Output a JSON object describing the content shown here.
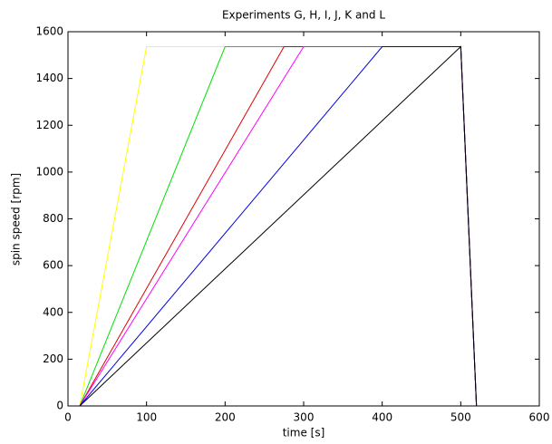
{
  "chart_data": {
    "type": "line",
    "title": "Experiments G, H, I, J, K and L",
    "xlabel": "time [s]",
    "ylabel": "spin speed [rpm]",
    "series": [
      {
        "color": "#ffff00",
        "x": [
          15,
          100,
          500,
          520
        ],
        "values": [
          0,
          1536,
          1536,
          0
        ]
      },
      {
        "color": "#00e000",
        "x": [
          15,
          200,
          500,
          520
        ],
        "values": [
          0,
          1536,
          1536,
          0
        ]
      },
      {
        "color": "#e00000",
        "x": [
          15,
          275,
          500,
          520
        ],
        "values": [
          0,
          1536,
          1536,
          0
        ]
      },
      {
        "color": "#ff00ff",
        "x": [
          15,
          300,
          500,
          520
        ],
        "values": [
          0,
          1536,
          1536,
          0
        ]
      },
      {
        "color": "#0000e0",
        "x": [
          15,
          400,
          500,
          520
        ],
        "values": [
          0,
          1536,
          1536,
          0
        ]
      },
      {
        "color": "#000000",
        "x": [
          15,
          500,
          520
        ],
        "values": [
          0,
          1536,
          0
        ]
      }
    ],
    "xlim": [
      0,
      600
    ],
    "xticks": [
      0,
      100,
      200,
      300,
      400,
      500,
      600
    ],
    "ylim": [
      0,
      1600
    ],
    "yticks": [
      0,
      200,
      400,
      600,
      800,
      1000,
      1200,
      1400,
      1600
    ],
    "grid": false
  }
}
